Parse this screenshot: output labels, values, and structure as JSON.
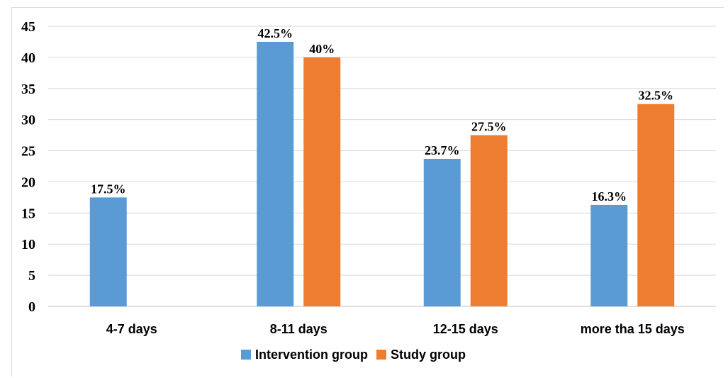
{
  "chart_data": {
    "type": "bar",
    "title": "",
    "xlabel": "",
    "ylabel": "",
    "categories": [
      "4-7 days",
      "8-11 days",
      "12-15 days",
      "more tha 15 days"
    ],
    "series": [
      {
        "name": "Intervention group",
        "color": "#5b9bd5",
        "values": [
          17.5,
          42.5,
          23.7,
          16.3
        ],
        "labels": [
          "17.5%",
          "42.5%",
          "23.7%",
          "16.3%"
        ]
      },
      {
        "name": "Study group",
        "color": "#ed7d31",
        "values": [
          null,
          40,
          27.5,
          32.5
        ],
        "labels": [
          "",
          "40%",
          "27.5%",
          "32.5%"
        ]
      }
    ],
    "ylim": [
      0,
      45
    ],
    "yticks": [
      0,
      5,
      10,
      15,
      20,
      25,
      30,
      35,
      40,
      45
    ],
    "grid": true,
    "legend_position": "bottom"
  }
}
